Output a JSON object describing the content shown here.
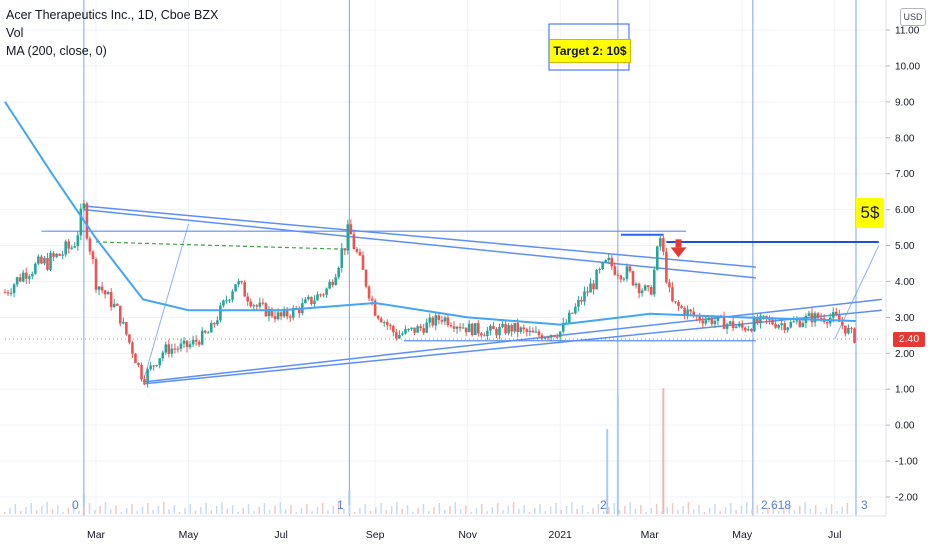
{
  "legend": {
    "title": "Acer Therapeutics Inc., 1D, Cboe BZX",
    "volume": "Vol",
    "ma": "MA (200, close, 0)"
  },
  "currency": "USD",
  "last_price": "2.40",
  "annotations": {
    "target_note": "Target 2: 10$",
    "five_note": "5$"
  },
  "fib_labels": [
    "0",
    "1",
    "2",
    "2.618",
    "3"
  ],
  "colors": {
    "up_candle": "#26a69a",
    "down_candle": "#ef5350",
    "trend_line": "#5b8ff9",
    "ma_line": "#42a5f5",
    "price_badge": "#e53935",
    "arrow": "#e53935",
    "dashed": "#43a047"
  },
  "chart_data": {
    "type": "candlestick",
    "y_axis": {
      "ticks": [
        "-2.00",
        "-1.00",
        "0.00",
        "1.00",
        "2.00",
        "3.00",
        "4.00",
        "5.00",
        "6.00",
        "7.00",
        "8.00",
        "9.00",
        "10.00",
        "11.00"
      ],
      "range": [
        -2.3,
        11.3
      ]
    },
    "x_axis": {
      "ticks": [
        "Mar",
        "May",
        "Jul",
        "Sep",
        "Nov",
        "2021",
        "Mar",
        "May",
        "Jul"
      ]
    },
    "price_series": [
      [
        "2020-01-01",
        3.7
      ],
      [
        "2020-01-15",
        4.3
      ],
      [
        "2020-02-01",
        4.6
      ],
      [
        "2020-02-15",
        5.0
      ],
      [
        "2020-02-22",
        6.0
      ],
      [
        "2020-03-01",
        4.0
      ],
      [
        "2020-03-15",
        3.2
      ],
      [
        "2020-04-01",
        1.3
      ],
      [
        "2020-04-15",
        2.1
      ],
      [
        "2020-05-01",
        2.2
      ],
      [
        "2020-05-15",
        2.6
      ],
      [
        "2020-06-01",
        4.0
      ],
      [
        "2020-06-15",
        3.3
      ],
      [
        "2020-07-01",
        3.0
      ],
      [
        "2020-07-15",
        3.3
      ],
      [
        "2020-08-01",
        3.8
      ],
      [
        "2020-08-15",
        5.4
      ],
      [
        "2020-09-01",
        3.2
      ],
      [
        "2020-09-15",
        2.5
      ],
      [
        "2020-10-01",
        2.7
      ],
      [
        "2020-10-15",
        3.0
      ],
      [
        "2020-11-01",
        2.7
      ],
      [
        "2020-11-15",
        2.6
      ],
      [
        "2020-12-01",
        2.7
      ],
      [
        "2020-12-15",
        2.5
      ],
      [
        "2021-01-01",
        2.6
      ],
      [
        "2021-01-15",
        3.5
      ],
      [
        "2021-02-01",
        4.5
      ],
      [
        "2021-02-15",
        4.2
      ],
      [
        "2021-03-01",
        3.6
      ],
      [
        "2021-03-08",
        5.2
      ],
      [
        "2021-03-15",
        3.4
      ],
      [
        "2021-04-01",
        3.0
      ],
      [
        "2021-04-15",
        2.9
      ],
      [
        "2021-05-01",
        2.7
      ],
      [
        "2021-05-15",
        2.9
      ],
      [
        "2021-06-01",
        2.8
      ],
      [
        "2021-06-15",
        3.0
      ],
      [
        "2021-07-01",
        3.0
      ],
      [
        "2021-07-15",
        2.4
      ]
    ],
    "ma_200": [
      [
        "2020-01-01",
        9.0
      ],
      [
        "2020-02-01",
        7.0
      ],
      [
        "2020-03-01",
        5.2
      ],
      [
        "2020-04-01",
        3.5
      ],
      [
        "2020-05-01",
        3.2
      ],
      [
        "2020-07-01",
        3.2
      ],
      [
        "2020-09-01",
        3.4
      ],
      [
        "2020-11-01",
        3.0
      ],
      [
        "2021-01-01",
        2.8
      ],
      [
        "2021-03-01",
        3.1
      ],
      [
        "2021-05-01",
        3.0
      ],
      [
        "2021-07-15",
        2.9
      ]
    ],
    "volume": [
      [
        "2020-02-22",
        0.6
      ],
      [
        "2020-08-15",
        0.7
      ],
      [
        "2021-02-01",
        2.5
      ],
      [
        "2021-02-08",
        3.5
      ],
      [
        "2021-03-10",
        3.7
      ]
    ],
    "levels": {
      "resistance_1": 5.4,
      "support_1": 2.3,
      "target_level": 5.1
    }
  }
}
